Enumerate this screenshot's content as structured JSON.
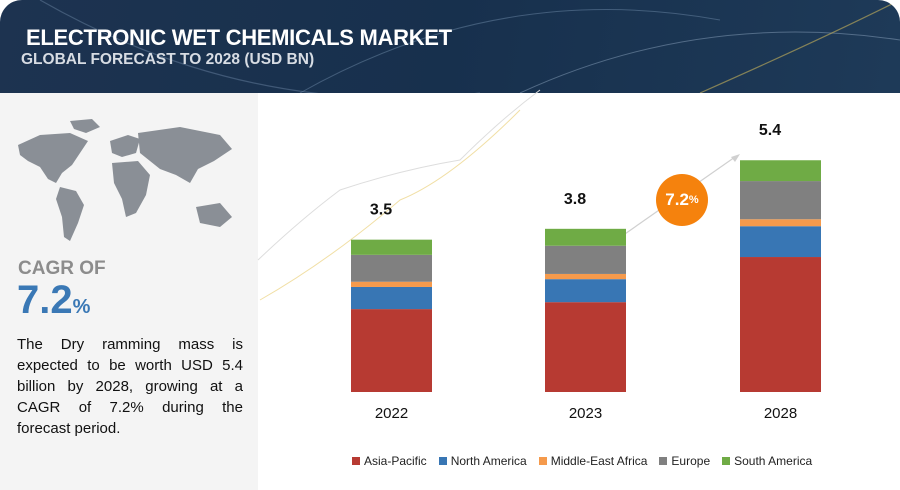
{
  "header": {
    "title": "ELECTRONIC WET CHEMICALS MARKET",
    "subtitle": "GLOBAL FORECAST TO 2028 (USD BN)"
  },
  "left_panel": {
    "cagr_label": "CAGR OF",
    "cagr_value": "7.2",
    "cagr_unit": "%",
    "description": "The  Dry ramming mass is expected to be worth USD 5.4 billion by 2028, growing at a CAGR of 7.2% during the forecast period."
  },
  "badge": {
    "value": "7.2",
    "unit": "%"
  },
  "chart_data": {
    "type": "bar",
    "stacked": true,
    "categories": [
      "2022",
      "2023",
      "2028"
    ],
    "totals": [
      "3.5",
      "3.8",
      "5.4"
    ],
    "series": [
      {
        "name": "Asia-Pacific",
        "color": "#b73a32",
        "values": [
          1.91,
          2.07,
          3.11
        ]
      },
      {
        "name": "North America",
        "color": "#3876b4",
        "values": [
          0.51,
          0.53,
          0.71
        ]
      },
      {
        "name": "Middle-East Africa",
        "color": "#f59a4c",
        "values": [
          0.12,
          0.12,
          0.16
        ]
      },
      {
        "name": "Europe",
        "color": "#808080",
        "values": [
          0.62,
          0.65,
          0.88
        ]
      },
      {
        "name": "South America",
        "color": "#6fab45",
        "values": [
          0.35,
          0.39,
          0.48
        ]
      }
    ],
    "ylim": [
      0,
      5.6
    ],
    "grid": false,
    "legend": "bottom",
    "annotation": "7.2%"
  }
}
